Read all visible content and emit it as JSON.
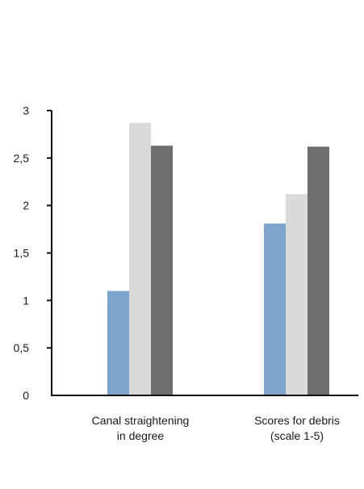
{
  "chart_data": {
    "type": "bar",
    "title": "",
    "xlabel": "",
    "ylabel": "",
    "ylim": [
      0,
      3
    ],
    "yticks": [
      "0",
      "0,5",
      "1",
      "1,5",
      "2",
      "2,5",
      "3"
    ],
    "categories": [
      [
        "Canal straightening",
        "in degree"
      ],
      [
        "Scores for debris",
        "(scale 1-5)"
      ]
    ],
    "series": [
      {
        "values": [
          1.1,
          1.81
        ],
        "color": "#7fa4cb"
      },
      {
        "values": [
          2.87,
          2.12
        ],
        "color": "#d9dadc"
      },
      {
        "values": [
          2.63,
          2.62
        ],
        "color": "#6d6e70"
      }
    ],
    "grid": false,
    "legend": "none"
  }
}
